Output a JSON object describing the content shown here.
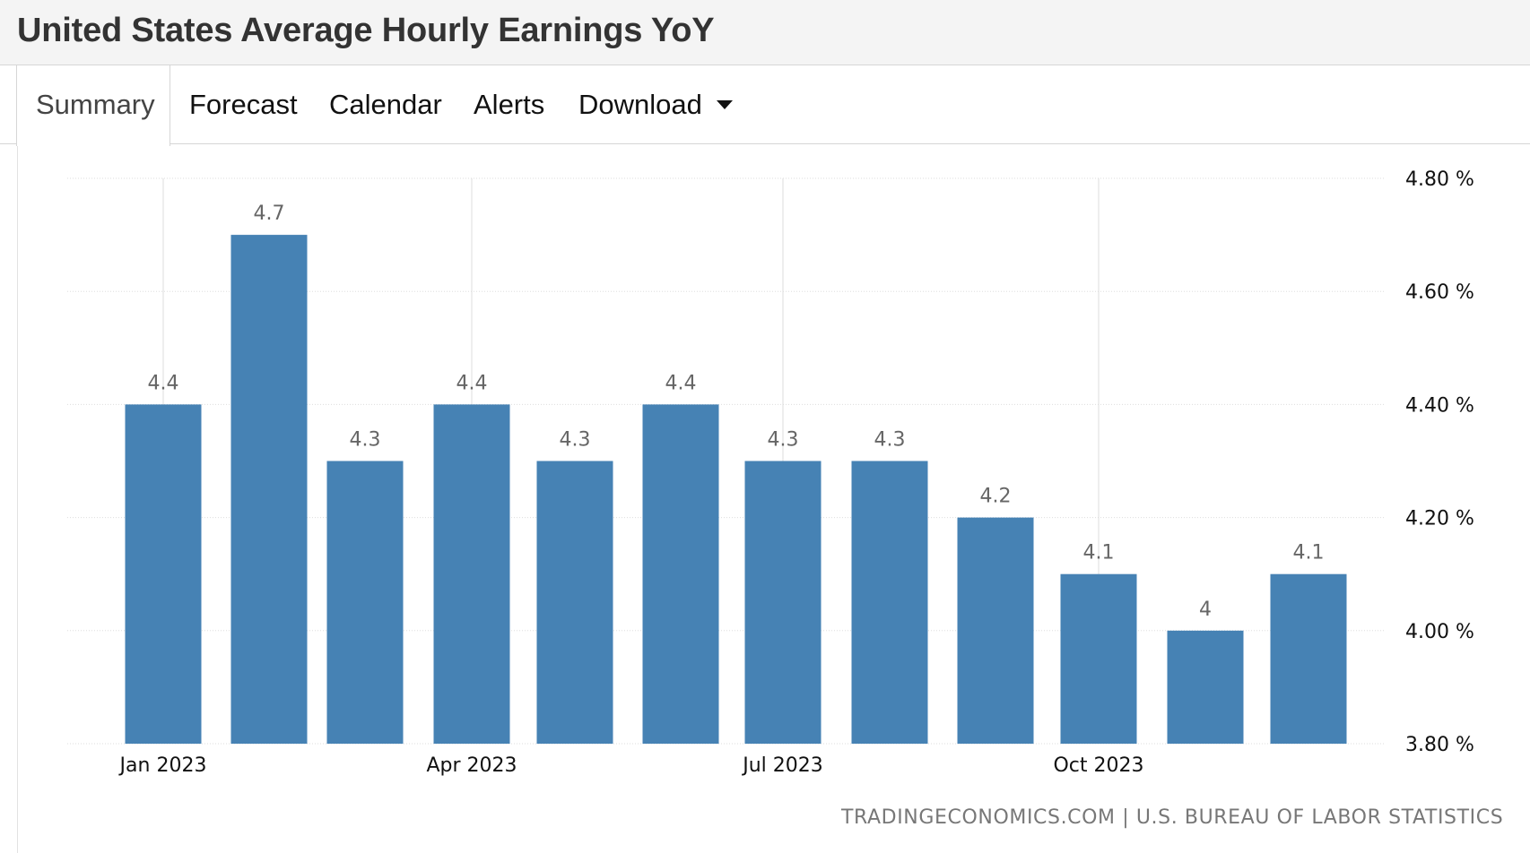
{
  "page": {
    "title": "United States Average Hourly Earnings YoY"
  },
  "tabs": [
    {
      "label": "Summary",
      "active": true
    },
    {
      "label": "Forecast",
      "active": false
    },
    {
      "label": "Calendar",
      "active": false
    },
    {
      "label": "Alerts",
      "active": false
    },
    {
      "label": "Download",
      "active": false,
      "icon": "caret-down-icon"
    }
  ],
  "source": {
    "site": "TRADINGECONOMICS.COM",
    "separator": "|",
    "agency": "U.S. BUREAU OF LABOR STATISTICS"
  },
  "colors": {
    "bar": "#4682b4",
    "label": "#666666",
    "axis_text": "#111111",
    "grid": "#dddddd"
  },
  "chart_data": {
    "type": "bar",
    "categories": [
      "Jan 2023",
      "Feb 2023",
      "Mar 2023",
      "Apr 2023",
      "May 2023",
      "Jun 2023",
      "Jul 2023",
      "Aug 2023",
      "Sep 2023",
      "Oct 2023",
      "Nov 2023",
      "Dec 2023"
    ],
    "values": [
      4.4,
      4.7,
      4.3,
      4.4,
      4.3,
      4.4,
      4.3,
      4.3,
      4.2,
      4.1,
      4.0,
      4.1
    ],
    "value_labels": [
      "4.4",
      "4.7",
      "4.3",
      "4.4",
      "4.3",
      "4.4",
      "4.3",
      "4.3",
      "4.2",
      "4.1",
      "4",
      "4.1"
    ],
    "x_tick_labels": [
      {
        "category": "Jan 2023",
        "label": "Jan 2023"
      },
      {
        "category": "Apr 2023",
        "label": "Apr 2023"
      },
      {
        "category": "Jul 2023",
        "label": "Jul 2023"
      },
      {
        "category": "Oct 2023",
        "label": "Oct 2023"
      }
    ],
    "y_ticks": [
      3.8,
      4.0,
      4.2,
      4.4,
      4.6,
      4.8
    ],
    "y_tick_labels": [
      "3.80 %",
      "4.00 %",
      "4.20 %",
      "4.40 %",
      "4.60 %",
      "4.80 %"
    ],
    "ylim": [
      3.8,
      4.8
    ],
    "y_axis_side": "right",
    "grid": true,
    "legend": false,
    "title": "",
    "xlabel": "",
    "ylabel": ""
  }
}
